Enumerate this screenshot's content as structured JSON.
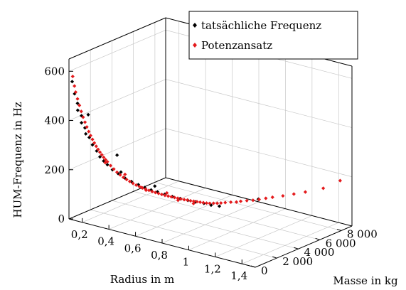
{
  "chart_data": {
    "type": "scatter",
    "x_label": "Radius in m",
    "y_label": "Masse in kg",
    "z_label": "HUM-Frequenz in Hz",
    "x_range": [
      0.1,
      1.5
    ],
    "y_range": [
      0,
      9000
    ],
    "z_range": [
      0,
      650
    ],
    "x_ticks": [
      {
        "value": 0.2,
        "label": "0,2"
      },
      {
        "value": 0.4,
        "label": "0,4"
      },
      {
        "value": 0.6,
        "label": "0,6"
      },
      {
        "value": 0.8,
        "label": "0,8"
      },
      {
        "value": 1.0,
        "label": "1"
      },
      {
        "value": 1.2,
        "label": "1,2"
      },
      {
        "value": 1.4,
        "label": "1,4"
      }
    ],
    "y_ticks": [
      {
        "value": 0,
        "label": "0"
      },
      {
        "value": 2000,
        "label": "2 000"
      },
      {
        "value": 4000,
        "label": "4 000"
      },
      {
        "value": 6000,
        "label": "6 000"
      },
      {
        "value": 8000,
        "label": "8 000"
      }
    ],
    "z_ticks": [
      {
        "value": 0,
        "label": "0"
      },
      {
        "value": 200,
        "label": "200"
      },
      {
        "value": 400,
        "label": "400"
      },
      {
        "value": 600,
        "label": "600"
      }
    ],
    "grid": true,
    "legend_position": "top-right",
    "series": [
      {
        "name": "tatsächliche Frequenz",
        "color": "#000000",
        "marker": "diamond",
        "points": [
          [
            0.12,
            50,
            560
          ],
          [
            0.13,
            150,
            510
          ],
          [
            0.14,
            300,
            470
          ],
          [
            0.15,
            200,
            445
          ],
          [
            0.16,
            420,
            420
          ],
          [
            0.17,
            300,
            395
          ],
          [
            0.18,
            500,
            372
          ],
          [
            0.19,
            450,
            350
          ],
          [
            0.2,
            650,
            333
          ],
          [
            0.22,
            700,
            305
          ],
          [
            0.24,
            850,
            280
          ],
          [
            0.26,
            900,
            258
          ],
          [
            0.28,
            1000,
            242
          ],
          [
            0.3,
            1100,
            228
          ],
          [
            0.33,
            1200,
            210
          ],
          [
            0.36,
            1350,
            196
          ],
          [
            0.4,
            1500,
            180
          ],
          [
            0.44,
            1600,
            170
          ],
          [
            0.48,
            1750,
            160
          ],
          [
            0.52,
            1850,
            152
          ],
          [
            0.56,
            1950,
            146
          ],
          [
            0.6,
            2050,
            142
          ],
          [
            0.65,
            2100,
            138
          ],
          [
            0.7,
            2200,
            134
          ],
          [
            0.75,
            2300,
            131
          ],
          [
            0.8,
            2400,
            129
          ],
          [
            0.85,
            2500,
            128
          ],
          [
            0.9,
            2650,
            126
          ],
          [
            0.95,
            2700,
            125
          ],
          [
            1.0,
            2850,
            125
          ],
          [
            0.3,
            2000,
            250
          ],
          [
            0.6,
            1800,
            170
          ],
          [
            1.2,
            4000,
            160
          ],
          [
            0.18,
            800,
            420
          ],
          [
            0.45,
            500,
            230
          ]
        ]
      },
      {
        "name": "Potenzansatz",
        "color": "#e41a1c",
        "marker": "diamond",
        "points": [
          [
            0.12,
            100,
            580
          ],
          [
            0.125,
            200,
            540
          ],
          [
            0.13,
            250,
            515
          ],
          [
            0.14,
            300,
            488
          ],
          [
            0.15,
            350,
            462
          ],
          [
            0.16,
            400,
            438
          ],
          [
            0.17,
            450,
            415
          ],
          [
            0.18,
            500,
            395
          ],
          [
            0.19,
            550,
            376
          ],
          [
            0.2,
            600,
            358
          ],
          [
            0.21,
            650,
            342
          ],
          [
            0.22,
            700,
            327
          ],
          [
            0.23,
            750,
            313
          ],
          [
            0.24,
            800,
            300
          ],
          [
            0.25,
            850,
            288
          ],
          [
            0.26,
            900,
            277
          ],
          [
            0.27,
            950,
            267
          ],
          [
            0.28,
            1000,
            257
          ],
          [
            0.29,
            1050,
            248
          ],
          [
            0.3,
            1100,
            240
          ],
          [
            0.32,
            1150,
            226
          ],
          [
            0.34,
            1200,
            214
          ],
          [
            0.36,
            1250,
            203
          ],
          [
            0.38,
            1300,
            194
          ],
          [
            0.4,
            1350,
            186
          ],
          [
            0.42,
            1400,
            179
          ],
          [
            0.44,
            1450,
            173
          ],
          [
            0.46,
            1500,
            167
          ],
          [
            0.48,
            1550,
            162
          ],
          [
            0.5,
            1600,
            158
          ],
          [
            0.52,
            1650,
            154
          ],
          [
            0.54,
            1700,
            151
          ],
          [
            0.56,
            1750,
            148
          ],
          [
            0.58,
            1800,
            145
          ],
          [
            0.6,
            1850,
            143
          ],
          [
            0.62,
            1900,
            141
          ],
          [
            0.64,
            1950,
            139
          ],
          [
            0.66,
            2000,
            137
          ],
          [
            0.68,
            2050,
            136
          ],
          [
            0.7,
            2100,
            135
          ],
          [
            0.72,
            2150,
            134
          ],
          [
            0.74,
            2200,
            133
          ],
          [
            0.76,
            2250,
            132
          ],
          [
            0.78,
            2300,
            131
          ],
          [
            0.8,
            2350,
            131
          ],
          [
            0.82,
            2400,
            130
          ],
          [
            0.84,
            2450,
            130
          ],
          [
            0.86,
            2500,
            130
          ],
          [
            0.88,
            2550,
            130
          ],
          [
            0.9,
            2600,
            130
          ],
          [
            0.92,
            2650,
            130
          ],
          [
            0.94,
            2700,
            131
          ],
          [
            0.96,
            2800,
            132
          ],
          [
            0.98,
            2900,
            133
          ],
          [
            1.0,
            3000,
            135
          ],
          [
            1.02,
            3150,
            137
          ],
          [
            1.05,
            3300,
            140
          ],
          [
            1.08,
            3450,
            142
          ],
          [
            1.1,
            3600,
            145
          ],
          [
            1.13,
            3800,
            148
          ],
          [
            1.16,
            4000,
            150
          ],
          [
            1.19,
            4200,
            154
          ],
          [
            1.22,
            4450,
            158
          ],
          [
            1.25,
            4700,
            162
          ],
          [
            1.3,
            5050,
            168
          ],
          [
            1.35,
            5450,
            175
          ],
          [
            1.4,
            5900,
            182
          ],
          [
            1.47,
            6700,
            192
          ],
          [
            1.5,
            7900,
            205
          ],
          [
            0.5,
            1800,
            150
          ],
          [
            0.65,
            2300,
            140
          ],
          [
            0.75,
            2100,
            128
          ],
          [
            0.4,
            1500,
            195
          ],
          [
            0.55,
            1600,
            150
          ],
          [
            0.85,
            2300,
            125
          ],
          [
            0.3,
            900,
            240
          ]
        ]
      }
    ]
  }
}
